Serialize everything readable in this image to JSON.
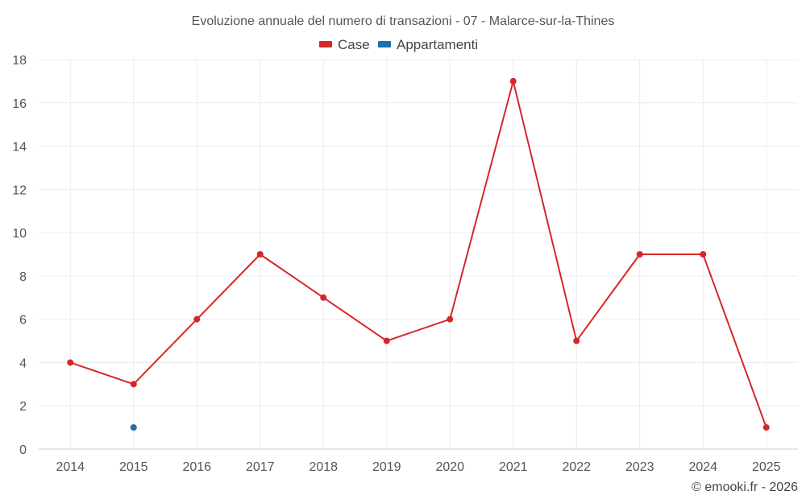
{
  "chart_data": {
    "type": "line",
    "title": "Evoluzione annuale del numero di transazioni - 07 - Malarce-sur-la-Thines",
    "categories": [
      "2014",
      "2015",
      "2016",
      "2017",
      "2018",
      "2019",
      "2020",
      "2021",
      "2022",
      "2023",
      "2024",
      "2025"
    ],
    "series": [
      {
        "name": "Case",
        "color": "#d62728",
        "values": [
          4,
          3,
          6,
          9,
          7,
          5,
          6,
          17,
          5,
          9,
          9,
          1
        ]
      },
      {
        "name": "Appartamenti",
        "color": "#1f6fa8",
        "values": [
          null,
          1,
          null,
          null,
          null,
          null,
          null,
          null,
          null,
          null,
          null,
          null
        ]
      }
    ],
    "ylim": [
      0,
      18
    ],
    "yticks": [
      0,
      2,
      4,
      6,
      8,
      10,
      12,
      14,
      16,
      18
    ],
    "grid": true,
    "legend": "top-center",
    "xlabel": "",
    "ylabel": ""
  },
  "credit": "© emooki.fr - 2026"
}
